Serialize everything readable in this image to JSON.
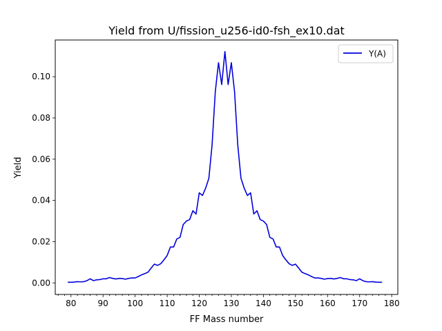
{
  "chart_data": {
    "type": "line",
    "title": "Yield from  U/fission_u256-id0-fsh_ex10.dat",
    "xlabel": "FF Mass number",
    "ylabel": "Yield",
    "xlim": [
      75.1,
      181.9
    ],
    "ylim": [
      -0.0056,
      0.1178
    ],
    "xticks": [
      80,
      90,
      100,
      110,
      120,
      130,
      140,
      150,
      160,
      170,
      180
    ],
    "xtick_labels": [
      "80",
      "90",
      "100",
      "110",
      "120",
      "130",
      "140",
      "150",
      "160",
      "170",
      "180"
    ],
    "xminor_step": 2,
    "yticks": [
      0.0,
      0.02,
      0.04,
      0.06,
      0.08,
      0.1
    ],
    "ytick_labels": [
      "0.00",
      "0.02",
      "0.04",
      "0.06",
      "0.08",
      "0.10"
    ],
    "grid": false,
    "legend": "top-right",
    "series": [
      {
        "name": "Y(A)",
        "color": "#0000dd",
        "x": [
          79,
          80,
          81,
          82,
          83,
          84,
          85,
          86,
          87,
          88,
          89,
          90,
          91,
          92,
          93,
          94,
          95,
          96,
          97,
          98,
          99,
          100,
          101,
          102,
          103,
          104,
          105,
          106,
          107,
          108,
          109,
          110,
          111,
          112,
          113,
          114,
          115,
          116,
          117,
          118,
          119,
          120,
          121,
          122,
          123,
          124,
          125,
          126,
          127,
          128,
          129,
          130,
          131,
          132,
          133,
          134,
          135,
          136,
          137,
          138,
          139,
          140,
          141,
          142,
          143,
          144,
          145,
          146,
          147,
          148,
          149,
          150,
          151,
          152,
          153,
          154,
          155,
          156,
          157,
          158,
          159,
          160,
          161,
          162,
          163,
          164,
          165,
          166,
          167,
          168,
          169,
          170,
          171,
          172,
          173,
          174,
          175,
          176,
          177
        ],
        "y": [
          0.0003,
          0.0003,
          0.0004,
          0.0006,
          0.0005,
          0.0006,
          0.0011,
          0.002,
          0.0011,
          0.0015,
          0.0016,
          0.002,
          0.002,
          0.0026,
          0.0022,
          0.0019,
          0.0022,
          0.0021,
          0.0018,
          0.0022,
          0.0024,
          0.0024,
          0.0031,
          0.0039,
          0.0045,
          0.0052,
          0.0072,
          0.0091,
          0.0085,
          0.0093,
          0.0112,
          0.0133,
          0.0174,
          0.0174,
          0.0213,
          0.0221,
          0.0283,
          0.03,
          0.0307,
          0.035,
          0.0334,
          0.0437,
          0.0424,
          0.046,
          0.0508,
          0.067,
          0.0928,
          0.1068,
          0.0962,
          0.1122,
          0.0962,
          0.1068,
          0.0928,
          0.067,
          0.0508,
          0.046,
          0.0424,
          0.0437,
          0.0334,
          0.035,
          0.0307,
          0.03,
          0.0283,
          0.0221,
          0.0213,
          0.0174,
          0.0174,
          0.0133,
          0.0112,
          0.0093,
          0.0085,
          0.0091,
          0.0072,
          0.0052,
          0.0045,
          0.0039,
          0.0031,
          0.0024,
          0.0024,
          0.0022,
          0.0018,
          0.0021,
          0.0022,
          0.0019,
          0.0022,
          0.0026,
          0.002,
          0.002,
          0.0016,
          0.0015,
          0.0011,
          0.002,
          0.0011,
          0.0006,
          0.0005,
          0.0006,
          0.0004,
          0.0003,
          0.0003
        ]
      }
    ]
  }
}
